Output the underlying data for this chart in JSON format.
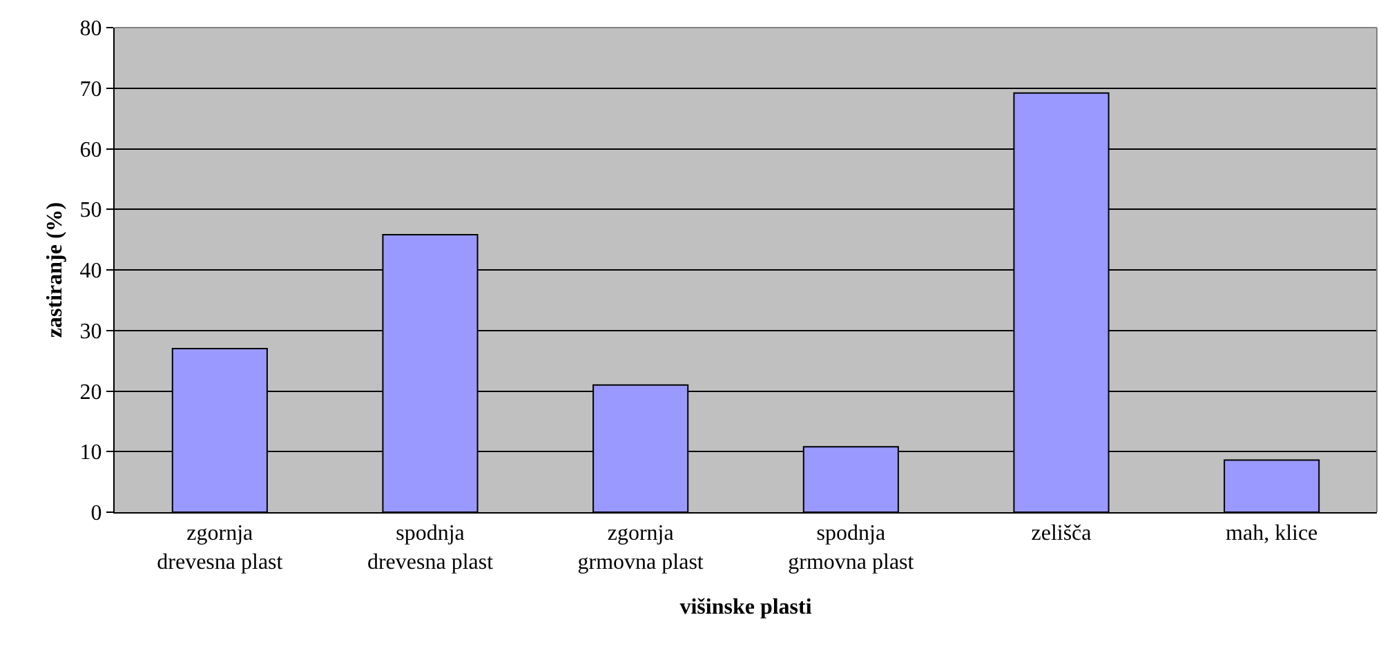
{
  "chart_data": {
    "type": "bar",
    "xlabel": "višinske plasti",
    "ylabel": "zastiranje (%)",
    "categories": [
      "zgornja drevesna plast",
      "spodnja drevesna plast",
      "zgornja grmovna plast",
      "spodnja grmovna plast",
      "zelišča",
      "mah, klice"
    ],
    "values": [
      27,
      45.8,
      21,
      10.8,
      69.2,
      8.6
    ],
    "color": "#9999ff",
    "ylim": [
      0,
      80
    ],
    "yticks": [
      0,
      10,
      20,
      30,
      40,
      50,
      60,
      70,
      80
    ],
    "grid": "y",
    "legend": false
  }
}
